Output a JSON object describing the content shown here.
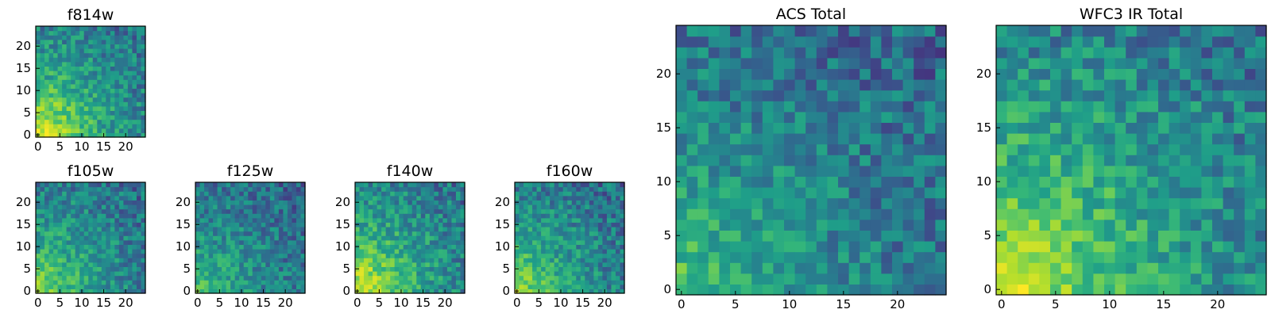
{
  "colormap": "viridis",
  "chart_data": [
    {
      "type": "heatmap",
      "title": "f814w",
      "grid": false,
      "xlim": [
        0,
        24
      ],
      "ylim": [
        0,
        24
      ],
      "xticks": [
        0,
        5,
        10,
        15,
        20
      ],
      "yticks": [
        0,
        5,
        10,
        15,
        20
      ],
      "xtick_labels": [
        "0",
        "5",
        "10",
        "15",
        "20"
      ],
      "ytick_labels": [
        "0",
        "5",
        "10",
        "15",
        "20"
      ],
      "intensity": "high at origin (0,0), decreasing toward upper-right"
    },
    {
      "type": "heatmap",
      "title": "f105w",
      "grid": false,
      "xlim": [
        0,
        24
      ],
      "ylim": [
        0,
        24
      ],
      "xticks": [
        0,
        5,
        10,
        15,
        20
      ],
      "yticks": [
        0,
        5,
        10,
        15,
        20
      ],
      "xtick_labels": [
        "0",
        "5",
        "10",
        "15",
        "20"
      ],
      "ytick_labels": [
        "0",
        "5",
        "10",
        "15",
        "20"
      ],
      "intensity": "high at origin (0,0), decreasing toward upper-right"
    },
    {
      "type": "heatmap",
      "title": "f125w",
      "grid": false,
      "xlim": [
        0,
        24
      ],
      "ylim": [
        0,
        24
      ],
      "xticks": [
        0,
        5,
        10,
        15,
        20
      ],
      "yticks": [
        0,
        5,
        10,
        15,
        20
      ],
      "xtick_labels": [
        "0",
        "5",
        "10",
        "15",
        "20"
      ],
      "ytick_labels": [
        "0",
        "5",
        "10",
        "15",
        "20"
      ],
      "intensity": "high at origin (0,0), decreasing toward upper-right"
    },
    {
      "type": "heatmap",
      "title": "f140w",
      "grid": false,
      "xlim": [
        0,
        24
      ],
      "ylim": [
        0,
        24
      ],
      "xticks": [
        0,
        5,
        10,
        15,
        20
      ],
      "yticks": [
        0,
        5,
        10,
        15,
        20
      ],
      "xtick_labels": [
        "0",
        "5",
        "10",
        "15",
        "20"
      ],
      "ytick_labels": [
        "0",
        "5",
        "10",
        "15",
        "20"
      ],
      "intensity": "high at origin (0,0), decreasing toward upper-right"
    },
    {
      "type": "heatmap",
      "title": "f160w",
      "grid": false,
      "xlim": [
        0,
        24
      ],
      "ylim": [
        0,
        24
      ],
      "xticks": [
        0,
        5,
        10,
        15,
        20
      ],
      "yticks": [
        0,
        5,
        10,
        15,
        20
      ],
      "xtick_labels": [
        "0",
        "5",
        "10",
        "15",
        "20"
      ],
      "ytick_labels": [
        "0",
        "5",
        "10",
        "15",
        "20"
      ],
      "intensity": "high at origin (0,0), decreasing toward upper-right"
    },
    {
      "type": "heatmap",
      "title": "ACS Total",
      "grid": false,
      "xlim": [
        0,
        24
      ],
      "ylim": [
        0,
        24
      ],
      "xticks": [
        0,
        5,
        10,
        15,
        20
      ],
      "yticks": [
        0,
        5,
        10,
        15,
        20
      ],
      "xtick_labels": [
        "0",
        "5",
        "10",
        "15",
        "20"
      ],
      "ytick_labels": [
        "0",
        "5",
        "10",
        "15",
        "20"
      ],
      "intensity": "high at origin (0,0), decreasing toward upper-right"
    },
    {
      "type": "heatmap",
      "title": "WFC3 IR Total",
      "grid": false,
      "xlim": [
        0,
        24
      ],
      "ylim": [
        0,
        24
      ],
      "xticks": [
        0,
        5,
        10,
        15,
        20
      ],
      "yticks": [
        0,
        5,
        10,
        15,
        20
      ],
      "xtick_labels": [
        "0",
        "5",
        "10",
        "15",
        "20"
      ],
      "ytick_labels": [
        "0",
        "5",
        "10",
        "15",
        "20"
      ],
      "intensity": "high at origin (0,0), decreasing toward upper-right"
    }
  ]
}
